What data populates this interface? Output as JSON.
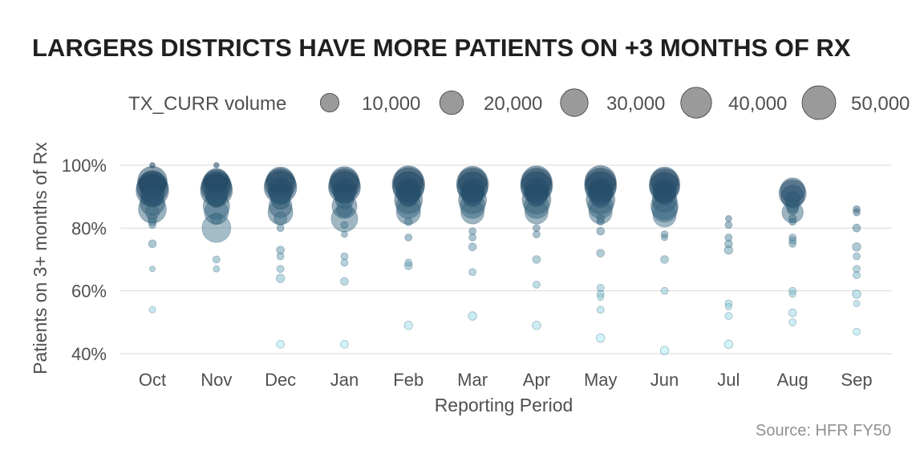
{
  "chart_data": {
    "type": "scatter",
    "title": "LARGERS DISTRICTS HAVE MORE PATIENTS ON +3 MONTHS OF RX",
    "xlabel": "Reporting Period",
    "ylabel": "Patients on 3+ months of Rx",
    "caption": "Source: HFR FY50",
    "categories": [
      "Oct",
      "Nov",
      "Dec",
      "Jan",
      "Feb",
      "Mar",
      "Apr",
      "May",
      "Jun",
      "Jul",
      "Aug",
      "Sep"
    ],
    "y_ticks": [
      0.4,
      0.6,
      0.8,
      1.0
    ],
    "y_tick_labels": [
      "40%",
      "60%",
      "80%",
      "100%"
    ],
    "ylim": [
      0.38,
      1.02
    ],
    "grid": true,
    "legend": {
      "title": "TX_CURR volume",
      "position": "top",
      "values": [
        10000,
        20000,
        30000,
        40000,
        50000
      ],
      "labels": [
        "10,000",
        "20,000",
        "30,000",
        "40,000",
        "50,000"
      ]
    },
    "color_scale": {
      "low": "#a6ecf6",
      "high": "#0b2f4f"
    },
    "series": [
      {
        "name": "Oct",
        "points": [
          {
            "y": 1.0,
            "size": 1500
          },
          {
            "y": 0.95,
            "size": 42000
          },
          {
            "y": 0.94,
            "size": 36000
          },
          {
            "y": 0.93,
            "size": 48000
          },
          {
            "y": 0.92,
            "size": 52000
          },
          {
            "y": 0.91,
            "size": 28000
          },
          {
            "y": 0.9,
            "size": 22000
          },
          {
            "y": 0.88,
            "size": 30000
          },
          {
            "y": 0.86,
            "size": 38000
          },
          {
            "y": 0.85,
            "size": 9000
          },
          {
            "y": 0.83,
            "size": 4000
          },
          {
            "y": 0.82,
            "size": 3000
          },
          {
            "y": 0.81,
            "size": 2500
          },
          {
            "y": 0.75,
            "size": 3000
          },
          {
            "y": 0.67,
            "size": 1500
          },
          {
            "y": 0.54,
            "size": 2000
          }
        ]
      },
      {
        "name": "Nov",
        "points": [
          {
            "y": 1.0,
            "size": 1500
          },
          {
            "y": 0.95,
            "size": 30000
          },
          {
            "y": 0.94,
            "size": 40000
          },
          {
            "y": 0.93,
            "size": 46000
          },
          {
            "y": 0.92,
            "size": 50000
          },
          {
            "y": 0.91,
            "size": 26000
          },
          {
            "y": 0.9,
            "size": 20000
          },
          {
            "y": 0.89,
            "size": 12000
          },
          {
            "y": 0.87,
            "size": 34000
          },
          {
            "y": 0.85,
            "size": 28000
          },
          {
            "y": 0.83,
            "size": 6000
          },
          {
            "y": 0.8,
            "size": 40000
          },
          {
            "y": 0.7,
            "size": 2500
          },
          {
            "y": 0.67,
            "size": 2000
          }
        ]
      },
      {
        "name": "Dec",
        "points": [
          {
            "y": 0.95,
            "size": 38000
          },
          {
            "y": 0.94,
            "size": 46000
          },
          {
            "y": 0.93,
            "size": 52000
          },
          {
            "y": 0.92,
            "size": 30000
          },
          {
            "y": 0.91,
            "size": 24000
          },
          {
            "y": 0.89,
            "size": 18000
          },
          {
            "y": 0.87,
            "size": 26000
          },
          {
            "y": 0.85,
            "size": 30000
          },
          {
            "y": 0.83,
            "size": 8000
          },
          {
            "y": 0.8,
            "size": 2500
          },
          {
            "y": 0.73,
            "size": 3000
          },
          {
            "y": 0.71,
            "size": 2500
          },
          {
            "y": 0.67,
            "size": 2500
          },
          {
            "y": 0.64,
            "size": 3500
          },
          {
            "y": 0.43,
            "size": 3000
          }
        ]
      },
      {
        "name": "Jan",
        "points": [
          {
            "y": 0.95,
            "size": 40000
          },
          {
            "y": 0.94,
            "size": 46000
          },
          {
            "y": 0.93,
            "size": 50000
          },
          {
            "y": 0.92,
            "size": 28000
          },
          {
            "y": 0.91,
            "size": 22000
          },
          {
            "y": 0.89,
            "size": 16000
          },
          {
            "y": 0.87,
            "size": 30000
          },
          {
            "y": 0.86,
            "size": 12000
          },
          {
            "y": 0.83,
            "size": 34000
          },
          {
            "y": 0.81,
            "size": 2500
          },
          {
            "y": 0.78,
            "size": 2000
          },
          {
            "y": 0.71,
            "size": 2500
          },
          {
            "y": 0.69,
            "size": 2500
          },
          {
            "y": 0.63,
            "size": 3000
          },
          {
            "y": 0.43,
            "size": 3000
          }
        ]
      },
      {
        "name": "Feb",
        "points": [
          {
            "y": 0.95,
            "size": 44000
          },
          {
            "y": 0.94,
            "size": 52000
          },
          {
            "y": 0.93,
            "size": 48000
          },
          {
            "y": 0.92,
            "size": 30000
          },
          {
            "y": 0.91,
            "size": 26000
          },
          {
            "y": 0.9,
            "size": 20000
          },
          {
            "y": 0.89,
            "size": 38000
          },
          {
            "y": 0.87,
            "size": 30000
          },
          {
            "y": 0.85,
            "size": 28000
          },
          {
            "y": 0.82,
            "size": 3000
          },
          {
            "y": 0.77,
            "size": 2500
          },
          {
            "y": 0.69,
            "size": 2500
          },
          {
            "y": 0.68,
            "size": 3000
          },
          {
            "y": 0.49,
            "size": 3500
          }
        ]
      },
      {
        "name": "Mar",
        "points": [
          {
            "y": 0.95,
            "size": 42000
          },
          {
            "y": 0.94,
            "size": 50000
          },
          {
            "y": 0.93,
            "size": 46000
          },
          {
            "y": 0.92,
            "size": 28000
          },
          {
            "y": 0.91,
            "size": 24000
          },
          {
            "y": 0.9,
            "size": 20000
          },
          {
            "y": 0.89,
            "size": 38000
          },
          {
            "y": 0.87,
            "size": 30000
          },
          {
            "y": 0.85,
            "size": 26000
          },
          {
            "y": 0.79,
            "size": 2500
          },
          {
            "y": 0.77,
            "size": 2500
          },
          {
            "y": 0.74,
            "size": 3000
          },
          {
            "y": 0.66,
            "size": 2500
          },
          {
            "y": 0.52,
            "size": 3500
          }
        ]
      },
      {
        "name": "Apr",
        "points": [
          {
            "y": 0.95,
            "size": 44000
          },
          {
            "y": 0.94,
            "size": 50000
          },
          {
            "y": 0.93,
            "size": 48000
          },
          {
            "y": 0.92,
            "size": 30000
          },
          {
            "y": 0.91,
            "size": 24000
          },
          {
            "y": 0.9,
            "size": 20000
          },
          {
            "y": 0.89,
            "size": 40000
          },
          {
            "y": 0.87,
            "size": 30000
          },
          {
            "y": 0.85,
            "size": 26000
          },
          {
            "y": 0.8,
            "size": 2500
          },
          {
            "y": 0.78,
            "size": 2500
          },
          {
            "y": 0.7,
            "size": 3000
          },
          {
            "y": 0.62,
            "size": 2500
          },
          {
            "y": 0.49,
            "size": 3500
          }
        ]
      },
      {
        "name": "May",
        "points": [
          {
            "y": 0.95,
            "size": 46000
          },
          {
            "y": 0.94,
            "size": 50000
          },
          {
            "y": 0.93,
            "size": 48000
          },
          {
            "y": 0.92,
            "size": 30000
          },
          {
            "y": 0.91,
            "size": 26000
          },
          {
            "y": 0.9,
            "size": 22000
          },
          {
            "y": 0.89,
            "size": 40000
          },
          {
            "y": 0.87,
            "size": 30000
          },
          {
            "y": 0.85,
            "size": 26000
          },
          {
            "y": 0.83,
            "size": 3000
          },
          {
            "y": 0.82,
            "size": 2500
          },
          {
            "y": 0.79,
            "size": 3000
          },
          {
            "y": 0.72,
            "size": 3000
          },
          {
            "y": 0.61,
            "size": 2500
          },
          {
            "y": 0.59,
            "size": 2500
          },
          {
            "y": 0.58,
            "size": 2000
          },
          {
            "y": 0.54,
            "size": 2500
          },
          {
            "y": 0.45,
            "size": 3500
          }
        ]
      },
      {
        "name": "Jun",
        "points": [
          {
            "y": 0.95,
            "size": 38000
          },
          {
            "y": 0.94,
            "size": 46000
          },
          {
            "y": 0.93,
            "size": 44000
          },
          {
            "y": 0.92,
            "size": 28000
          },
          {
            "y": 0.91,
            "size": 24000
          },
          {
            "y": 0.89,
            "size": 30000
          },
          {
            "y": 0.87,
            "size": 36000
          },
          {
            "y": 0.86,
            "size": 32000
          },
          {
            "y": 0.84,
            "size": 26000
          },
          {
            "y": 0.78,
            "size": 2500
          },
          {
            "y": 0.77,
            "size": 2000
          },
          {
            "y": 0.7,
            "size": 3000
          },
          {
            "y": 0.6,
            "size": 2500
          },
          {
            "y": 0.41,
            "size": 3500
          }
        ]
      },
      {
        "name": "Jul",
        "points": [
          {
            "y": 0.83,
            "size": 2000
          },
          {
            "y": 0.81,
            "size": 2500
          },
          {
            "y": 0.77,
            "size": 2500
          },
          {
            "y": 0.75,
            "size": 3000
          },
          {
            "y": 0.73,
            "size": 3500
          },
          {
            "y": 0.56,
            "size": 2500
          },
          {
            "y": 0.55,
            "size": 2000
          },
          {
            "y": 0.52,
            "size": 2500
          },
          {
            "y": 0.43,
            "size": 3500
          }
        ]
      },
      {
        "name": "Aug",
        "points": [
          {
            "y": 0.92,
            "size": 30000
          },
          {
            "y": 0.91,
            "size": 36000
          },
          {
            "y": 0.9,
            "size": 26000
          },
          {
            "y": 0.89,
            "size": 12000
          },
          {
            "y": 0.87,
            "size": 8000
          },
          {
            "y": 0.86,
            "size": 6000
          },
          {
            "y": 0.85,
            "size": 22000
          },
          {
            "y": 0.83,
            "size": 3000
          },
          {
            "y": 0.82,
            "size": 2500
          },
          {
            "y": 0.77,
            "size": 2500
          },
          {
            "y": 0.76,
            "size": 2500
          },
          {
            "y": 0.75,
            "size": 2500
          },
          {
            "y": 0.6,
            "size": 2500
          },
          {
            "y": 0.59,
            "size": 2000
          },
          {
            "y": 0.53,
            "size": 3000
          },
          {
            "y": 0.5,
            "size": 2500
          }
        ]
      },
      {
        "name": "Sep",
        "points": [
          {
            "y": 0.86,
            "size": 2500
          },
          {
            "y": 0.85,
            "size": 2500
          },
          {
            "y": 0.8,
            "size": 3000
          },
          {
            "y": 0.74,
            "size": 3500
          },
          {
            "y": 0.71,
            "size": 2500
          },
          {
            "y": 0.67,
            "size": 2500
          },
          {
            "y": 0.65,
            "size": 2500
          },
          {
            "y": 0.59,
            "size": 3500
          },
          {
            "y": 0.56,
            "size": 2000
          },
          {
            "y": 0.47,
            "size": 2500
          }
        ]
      }
    ]
  }
}
